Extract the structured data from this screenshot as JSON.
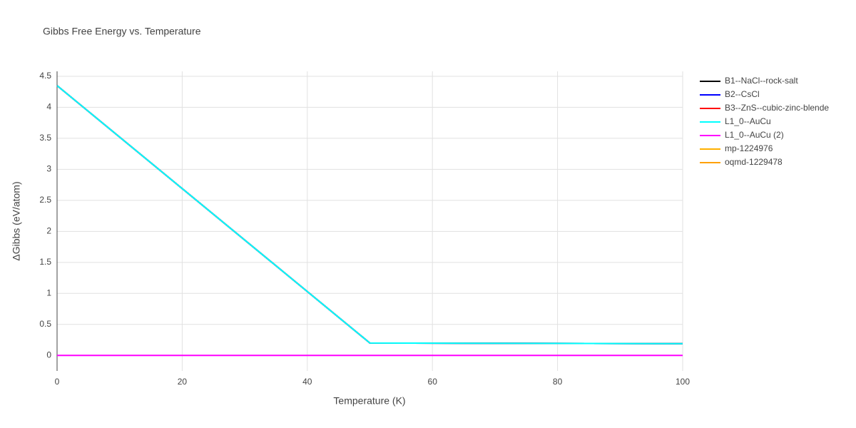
{
  "chart_data": {
    "type": "line",
    "title": "Gibbs Free Energy vs. Temperature",
    "x_label": "Temperature (K)",
    "y_label": "ΔGibbs (eV/atom)",
    "x": [
      0,
      50,
      100
    ],
    "series": [
      {
        "name": "B1--NaCl--rock-salt",
        "color": "#000000",
        "values": [
          4.35,
          0.2,
          0.19
        ]
      },
      {
        "name": "B2--CsCl",
        "color": "#0000ff",
        "values": [
          4.35,
          0.2,
          0.19
        ]
      },
      {
        "name": "B3--ZnS--cubic-zinc-blende",
        "color": "#ff0000",
        "values": [
          4.35,
          0.2,
          0.19
        ]
      },
      {
        "name": "L1_0--AuCu",
        "color": "#00ffff",
        "values": [
          4.35,
          0.2,
          0.19
        ]
      },
      {
        "name": "L1_0--AuCu (2)",
        "color": "#ff00ff",
        "values": [
          0,
          0,
          0
        ]
      },
      {
        "name": "mp-1224976",
        "color": "#ffb000",
        "values": [
          null,
          null,
          null
        ]
      },
      {
        "name": "oqmd-1229478",
        "color": "#ffa000",
        "values": [
          null,
          null,
          null
        ]
      }
    ],
    "xlim": [
      0,
      100
    ],
    "xticks": [
      0,
      20,
      40,
      60,
      80,
      100
    ],
    "ylim": [
      -0.25,
      4.58
    ],
    "yticks": [
      0,
      0.5,
      1,
      1.5,
      2,
      2.5,
      3,
      3.5,
      4,
      4.5
    ],
    "grid": true
  }
}
